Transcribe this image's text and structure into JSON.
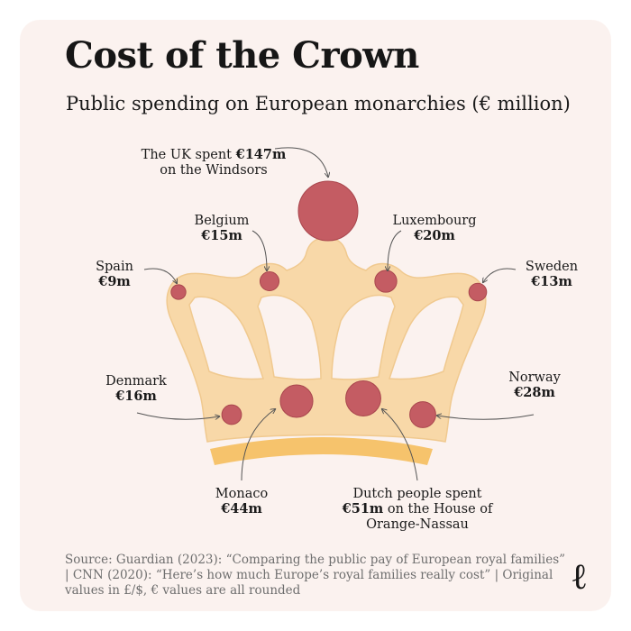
{
  "title": "Cost of the Crown",
  "subtitle": "Public spending on European monarchies (€ million)",
  "source": "Source: Guardian (2023): “Comparing the public pay of European royal families” | CNN (2020): “Here’s how much Europe’s royal families really cost” | Original values in £/$, € values are all rounded",
  "logo": "ℓ",
  "colors": {
    "background": "#fbf2ef",
    "crown_fill": "#f8d8a8",
    "crown_outline": "#f0c98f",
    "crown_band": "#f6c36c",
    "gem": "#c45c63",
    "gem_outline": "#a9464d",
    "annotation_line": "#555555"
  },
  "chart_data": {
    "type": "bubble",
    "title": "Cost of the Crown",
    "subtitle": "Public spending on European monarchies (€ million)",
    "unit": "€ million",
    "points": [
      {
        "country": "UK",
        "value": 147,
        "label_lines": [
          "The UK spent €147m",
          "on the Windsors"
        ],
        "value_text": "€147m"
      },
      {
        "country": "Spain",
        "value": 9,
        "label_lines": [
          "Spain",
          "€9m"
        ],
        "value_text": "€9m"
      },
      {
        "country": "Belgium",
        "value": 15,
        "label_lines": [
          "Belgium",
          "€15m"
        ],
        "value_text": "€15m"
      },
      {
        "country": "Luxembourg",
        "value": 20,
        "label_lines": [
          "Luxembourg",
          "€20m"
        ],
        "value_text": "€20m"
      },
      {
        "country": "Sweden",
        "value": 13,
        "label_lines": [
          "Sweden",
          "€13m"
        ],
        "value_text": "€13m"
      },
      {
        "country": "Denmark",
        "value": 16,
        "label_lines": [
          "Denmark",
          "€16m"
        ],
        "value_text": "€16m"
      },
      {
        "country": "Monaco",
        "value": 44,
        "label_lines": [
          "Monaco",
          "€44m"
        ],
        "value_text": "€44m"
      },
      {
        "country": "Netherlands",
        "value": 51,
        "label_lines": [
          "Dutch people spent",
          "€51m on the House of",
          "Orange-Nassau"
        ],
        "value_text": "€51m"
      },
      {
        "country": "Norway",
        "value": 28,
        "label_lines": [
          "Norway",
          "€28m"
        ],
        "value_text": "€28m"
      }
    ]
  }
}
